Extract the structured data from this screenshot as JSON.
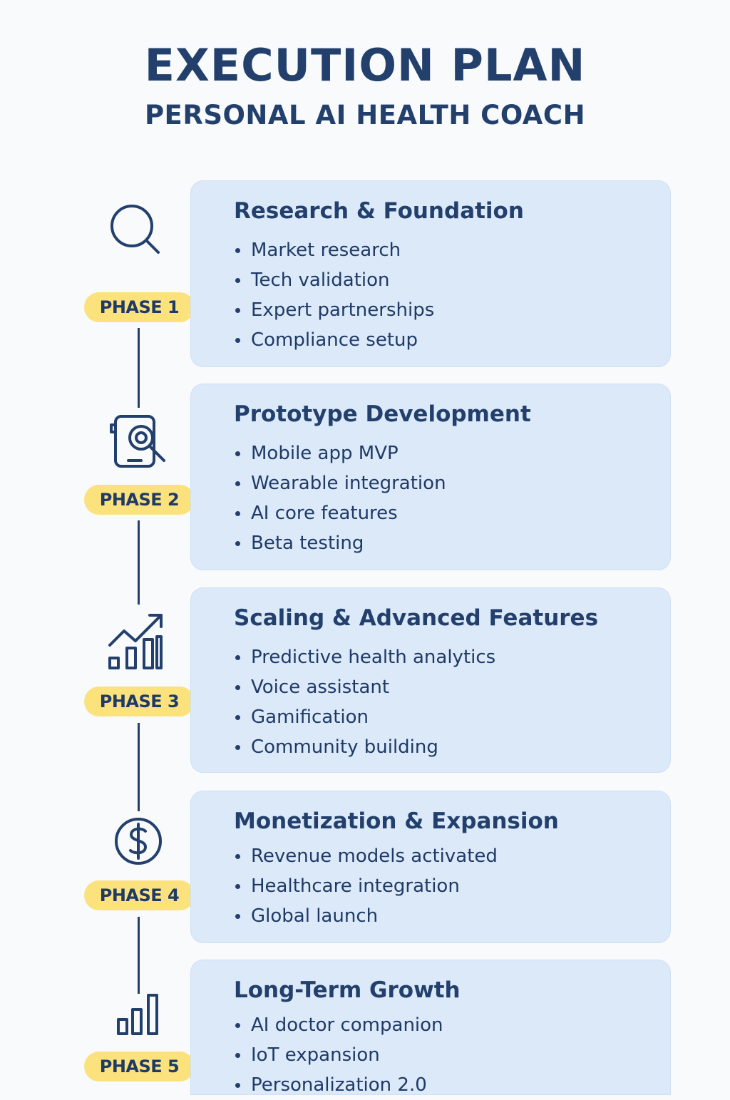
{
  "header": {
    "title": "EXECUTION PLAN",
    "subtitle": "PERSONAL AI HEALTH COACH"
  },
  "phases": [
    {
      "badge": "PHASE 1",
      "icon": "magnifier-icon",
      "title": "Research & Foundation",
      "items": [
        "Market research",
        "Tech validation",
        "Expert partnerships",
        "Compliance setup"
      ]
    },
    {
      "badge": "PHASE 2",
      "icon": "phone-magnifier-icon",
      "title": "Prototype Development",
      "items": [
        "Mobile app MVP",
        "Wearable integration",
        "AI core features",
        "Beta testing"
      ]
    },
    {
      "badge": "PHASE 3",
      "icon": "growth-chart-icon",
      "title": "Scaling & Advanced Features",
      "items": [
        "Predictive health analytics",
        "Voice assistant",
        "Gamification",
        "Community building"
      ]
    },
    {
      "badge": "PHASE 4",
      "icon": "dollar-coin-icon",
      "title": "Monetization & Expansion",
      "items": [
        "Revenue models activated",
        "Healthcare integration",
        "Global launch"
      ]
    },
    {
      "badge": "PHASE 5",
      "icon": "bar-chart-icon",
      "title": "Long-Term Growth",
      "items": [
        "AI doctor companion",
        "IoT expansion",
        "Personalization 2.0"
      ]
    }
  ],
  "colors": {
    "background": "#f8fafc",
    "text": "#23406d",
    "card": "#dbe9f9",
    "badge": "#fbe27d"
  }
}
